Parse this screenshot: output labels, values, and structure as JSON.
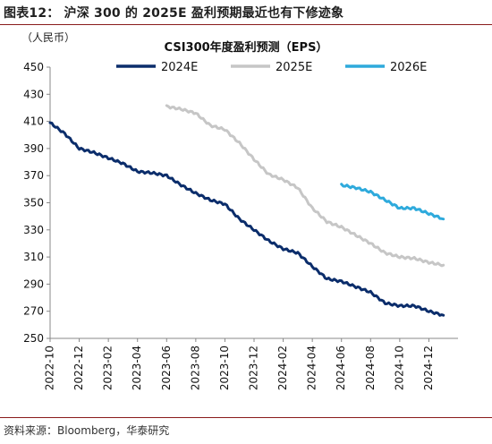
{
  "figure": {
    "title": "图表12：  沪深 300 的 2025E 盈利预期最近也有下修迹象",
    "unit": "（人民币）",
    "source": "资料来源：Bloomberg，华泰研究"
  },
  "colors": {
    "s2024": "#0b2d6b",
    "s2025": "#c6c6c6",
    "s2026": "#2eaadc",
    "rule": "#8a1c1c"
  },
  "chart_data": {
    "type": "line",
    "title": "CSI300年度盈利预测（EPS）",
    "xlabel": "",
    "ylabel": "（人民币）",
    "ylim": [
      250,
      450
    ],
    "yticks": [
      250,
      270,
      290,
      310,
      330,
      350,
      370,
      390,
      410,
      430,
      450
    ],
    "xlim": [
      "2022-10",
      "2025-02"
    ],
    "xticks": [
      "2022-10",
      "2022-12",
      "2023-02",
      "2023-04",
      "2023-06",
      "2023-08",
      "2023-10",
      "2023-12",
      "2024-02",
      "2024-04",
      "2024-06",
      "2024-08",
      "2024-10",
      "2024-12"
    ],
    "grid": false,
    "legend": "top",
    "series": [
      {
        "name": "2024E",
        "points": [
          [
            "2022-10",
            409
          ],
          [
            "2022-11",
            401
          ],
          [
            "2022-12",
            390
          ],
          [
            "2023-01",
            387
          ],
          [
            "2023-02",
            383
          ],
          [
            "2023-03",
            379
          ],
          [
            "2023-04",
            373
          ],
          [
            "2023-05",
            372
          ],
          [
            "2023-06",
            370
          ],
          [
            "2023-07",
            363
          ],
          [
            "2023-08",
            357
          ],
          [
            "2023-09",
            352
          ],
          [
            "2023-10",
            349
          ],
          [
            "2023-11",
            338
          ],
          [
            "2023-12",
            330
          ],
          [
            "2024-01",
            322
          ],
          [
            "2024-02",
            316
          ],
          [
            "2024-03",
            313
          ],
          [
            "2024-04",
            303
          ],
          [
            "2024-05",
            294
          ],
          [
            "2024-06",
            292
          ],
          [
            "2024-07",
            288
          ],
          [
            "2024-08",
            284
          ],
          [
            "2024-09",
            276
          ],
          [
            "2024-10",
            274
          ],
          [
            "2024-11",
            274
          ],
          [
            "2024-12",
            270
          ],
          [
            "2025-01",
            267
          ]
        ]
      },
      {
        "name": "2025E",
        "points": [
          [
            "2023-06",
            421
          ],
          [
            "2023-07",
            419
          ],
          [
            "2023-08",
            416
          ],
          [
            "2023-09",
            407
          ],
          [
            "2023-10",
            404
          ],
          [
            "2023-11",
            394
          ],
          [
            "2023-12",
            382
          ],
          [
            "2024-01",
            371
          ],
          [
            "2024-02",
            367
          ],
          [
            "2024-03",
            361
          ],
          [
            "2024-04",
            346
          ],
          [
            "2024-05",
            336
          ],
          [
            "2024-06",
            332
          ],
          [
            "2024-07",
            326
          ],
          [
            "2024-08",
            320
          ],
          [
            "2024-09",
            313
          ],
          [
            "2024-10",
            310
          ],
          [
            "2024-11",
            309
          ],
          [
            "2024-12",
            306
          ],
          [
            "2025-01",
            304
          ]
        ]
      },
      {
        "name": "2026E",
        "points": [
          [
            "2024-06",
            363
          ],
          [
            "2024-07",
            361
          ],
          [
            "2024-08",
            358
          ],
          [
            "2024-09",
            352
          ],
          [
            "2024-10",
            346
          ],
          [
            "2024-11",
            346
          ],
          [
            "2024-12",
            342
          ],
          [
            "2025-01",
            338
          ]
        ]
      }
    ]
  }
}
